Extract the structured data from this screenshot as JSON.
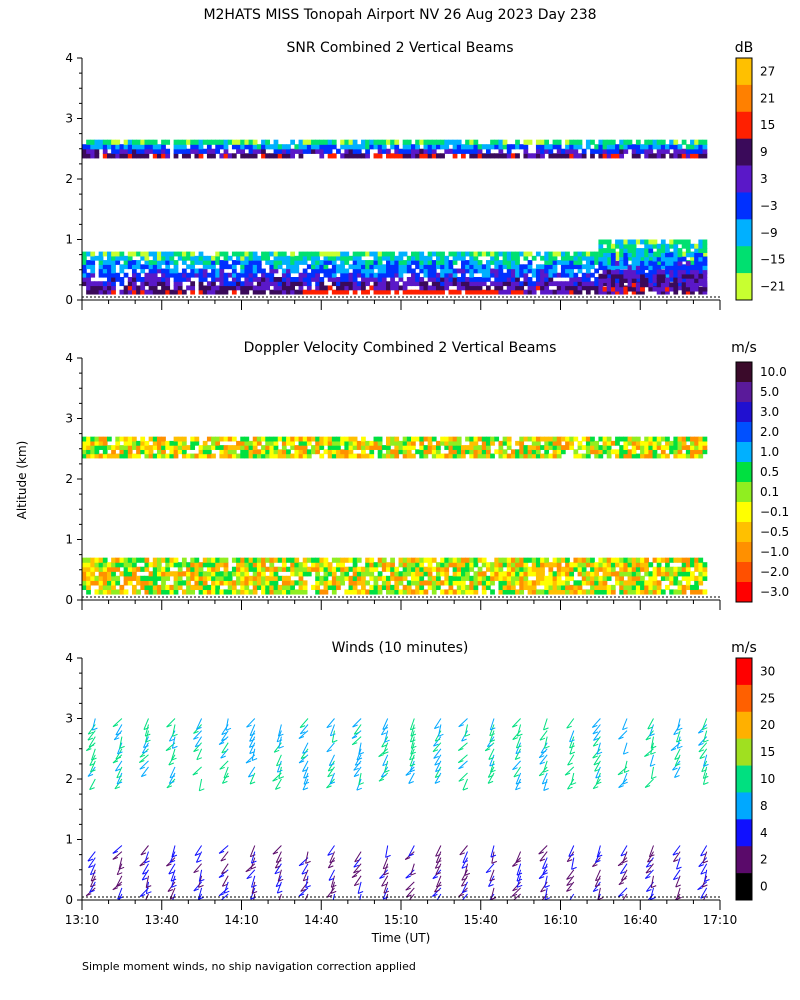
{
  "title": "M2HATS MISS Tonopah Airport NV  26 Aug 2023 Day 238",
  "shared_ylabel": "Altitude (km)",
  "footnote": "Simple moment winds, no ship navigation correction applied",
  "chart_data": [
    {
      "type": "heatmap",
      "title": "SNR Combined 2 Vertical Beams",
      "xlabel": "",
      "ylabel": "Altitude (km)",
      "x_tick_labels": [],
      "y_tick_labels": [
        "0",
        "1",
        "2",
        "3",
        "4"
      ],
      "ylim": [
        0,
        4
      ],
      "xlim": [
        "13:10",
        "17:10"
      ],
      "colorbar": {
        "unit": "dB",
        "labels": [
          "27",
          "21",
          "15",
          "9",
          "3",
          "−3",
          "−9",
          "−15",
          "−21"
        ],
        "colors": [
          "#ffc000",
          "#ff8000",
          "#ff2000",
          "#3a0a5a",
          "#5a18c8",
          "#0030ff",
          "#00b0ff",
          "#00e070",
          "#c8ff30"
        ]
      },
      "features": [
        {
          "feature": "cloud layer",
          "top_km": 2.65,
          "base_km": 2.35,
          "snr_db": [
            -21,
            3
          ]
        },
        {
          "feature": "boundary layer",
          "top_km": 0.8,
          "base_km": 0.1,
          "snr_db": [
            -21,
            15
          ],
          "max_near": "15:10"
        },
        {
          "feature": "deep convective layer",
          "start": "16:25",
          "end": "17:05",
          "top_km": 1.0
        }
      ]
    },
    {
      "type": "heatmap",
      "title": "Doppler Velocity Combined 2 Vertical Beams",
      "xlabel": "",
      "ylabel": "Altitude (km)",
      "x_tick_labels": [],
      "y_tick_labels": [
        "0",
        "1",
        "2",
        "3",
        "4"
      ],
      "ylim": [
        0,
        4
      ],
      "xlim": [
        "13:10",
        "17:10"
      ],
      "colorbar": {
        "unit": "m/s",
        "labels": [
          "10.0",
          "5.0",
          "3.0",
          "2.0",
          "1.0",
          "0.5",
          "0.1",
          "−0.1",
          "−0.5",
          "−1.0",
          "−2.0",
          "−3.0"
        ],
        "colors": [
          "#3a0a2a",
          "#5a1a9a",
          "#2010d0",
          "#0050ff",
          "#00b0ff",
          "#00e040",
          "#90ee20",
          "#ffff00",
          "#ffc000",
          "#ff9000",
          "#ff5000",
          "#ff0000"
        ]
      },
      "features": [
        {
          "feature": "cloud layer",
          "top_km": 2.7,
          "base_km": 2.35,
          "velocity_ms": [
            -1.0,
            0.5
          ]
        },
        {
          "feature": "boundary layer",
          "top_km": 0.7,
          "base_km": 0.1,
          "velocity_ms": [
            -1.0,
            0.1
          ]
        }
      ]
    },
    {
      "type": "scatter",
      "title": "Winds (10 minutes)",
      "xlabel": "Time (UT)",
      "ylabel": "Altitude (km)",
      "x_tick_labels": [
        "13:10",
        "13:40",
        "14:10",
        "14:40",
        "15:10",
        "15:40",
        "16:10",
        "16:40",
        "17:10"
      ],
      "y_tick_labels": [
        "0",
        "1",
        "2",
        "3",
        "4"
      ],
      "ylim": [
        0,
        4
      ],
      "xlim": [
        "13:10",
        "17:10"
      ],
      "colorbar": {
        "unit": "m/s",
        "labels": [
          "30",
          "25",
          "20",
          "15",
          "10",
          "8",
          "4",
          "2",
          "0"
        ],
        "colors": [
          "#ff0000",
          "#ff6000",
          "#ffb000",
          "#a0e020",
          "#00e080",
          "#00a8ff",
          "#1010ff",
          "#5a0a6a",
          "#000000"
        ]
      },
      "wind_profiles": {
        "interval_min": 10,
        "start": "13:15",
        "end": "17:05",
        "layers": [
          {
            "layer": "boundary layer",
            "altitude_km": [
              0.1,
              0.9
            ],
            "speed_ms": [
              2,
              10
            ]
          },
          {
            "layer": "cloud layer",
            "altitude_km": [
              2.0,
              3.0
            ],
            "speed_ms": [
              10,
              20
            ]
          }
        ]
      }
    }
  ]
}
